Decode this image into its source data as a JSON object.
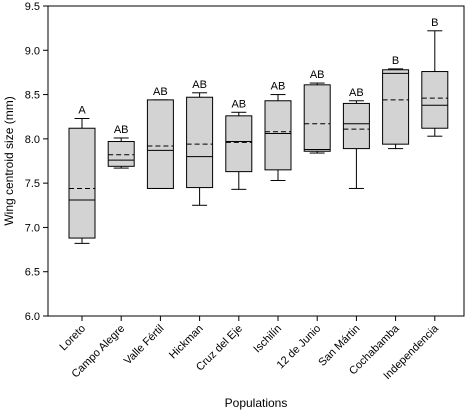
{
  "chart_data": {
    "type": "box",
    "xlabel": "Populations",
    "ylabel": "Wing centroid size (mm)",
    "ylim": [
      6.0,
      9.5
    ],
    "yticks": [
      "6.0",
      "6.5",
      "7.0",
      "7.5",
      "8.0",
      "8.5",
      "9.0",
      "9.5"
    ],
    "grid": false,
    "box_fill": "#d3d3d3",
    "line_color": "#000000",
    "categories": [
      "Loreto",
      "Campo Alegre",
      "Valle Fértil",
      "Hickman",
      "Cruz del Eje",
      "Ischilín",
      "12 de Junio",
      "San Mártin",
      "Cochabamba",
      "Independencia"
    ],
    "boxes": [
      {
        "min": 6.82,
        "q1": 6.88,
        "median": 7.31,
        "mean": 7.44,
        "q3": 8.12,
        "max": 8.23,
        "group": "A"
      },
      {
        "min": 7.67,
        "q1": 7.69,
        "median": 7.76,
        "mean": 7.82,
        "q3": 7.97,
        "max": 8.01,
        "group": "AB"
      },
      {
        "min": 7.44,
        "q1": 7.44,
        "median": 7.87,
        "mean": 7.92,
        "q3": 8.44,
        "max": 8.44,
        "group": "AB"
      },
      {
        "min": 7.25,
        "q1": 7.45,
        "median": 7.8,
        "mean": 7.94,
        "q3": 8.47,
        "max": 8.52,
        "group": "AB"
      },
      {
        "min": 7.43,
        "q1": 7.63,
        "median": 7.97,
        "mean": 7.96,
        "q3": 8.26,
        "max": 8.3,
        "group": "AB"
      },
      {
        "min": 7.53,
        "q1": 7.65,
        "median": 8.06,
        "mean": 8.08,
        "q3": 8.43,
        "max": 8.5,
        "group": "AB"
      },
      {
        "min": 7.84,
        "q1": 7.86,
        "median": 7.88,
        "mean": 8.17,
        "q3": 8.61,
        "max": 8.63,
        "group": "AB"
      },
      {
        "min": 7.44,
        "q1": 7.89,
        "median": 8.17,
        "mean": 8.11,
        "q3": 8.4,
        "max": 8.43,
        "group": "AB"
      },
      {
        "min": 7.89,
        "q1": 7.94,
        "median": 8.74,
        "mean": 8.44,
        "q3": 8.78,
        "max": 8.79,
        "group": "B"
      },
      {
        "min": 8.03,
        "q1": 8.12,
        "median": 8.38,
        "mean": 8.46,
        "q3": 8.76,
        "max": 9.22,
        "group": "B"
      }
    ]
  }
}
